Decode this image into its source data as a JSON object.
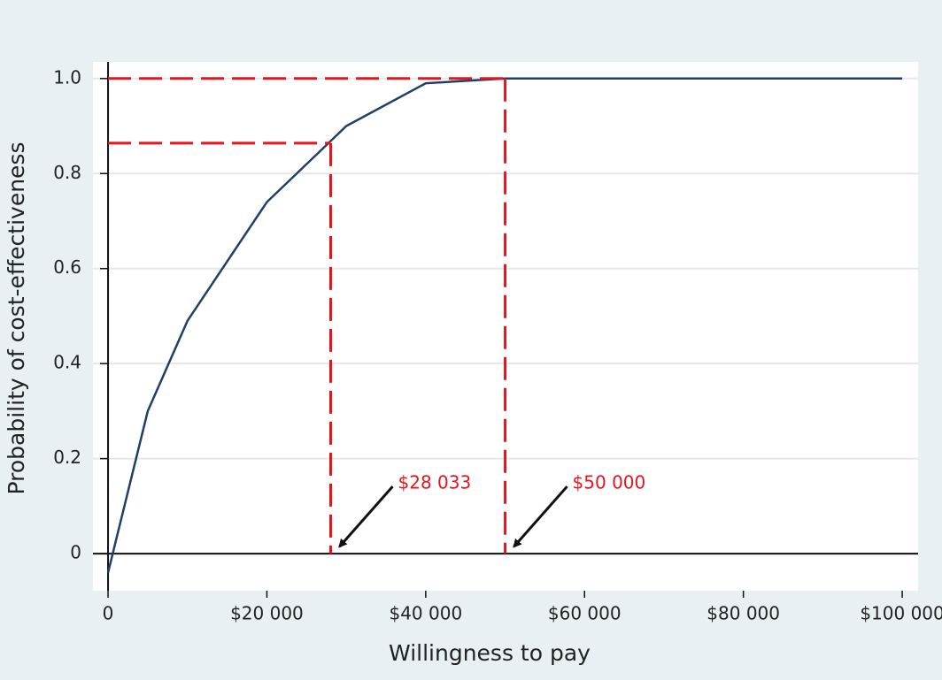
{
  "chart_data": {
    "type": "line",
    "x_label": "Willingness to pay",
    "y_label": "Probability of cost-effectiveness",
    "x": [
      0,
      5000,
      10000,
      20000,
      30000,
      40000,
      50000,
      60000,
      70000,
      80000,
      90000,
      100000
    ],
    "values": [
      -0.04,
      0.3,
      0.49,
      0.74,
      0.9,
      0.99,
      1.0,
      1.0,
      1.0,
      1.0,
      1.0,
      1.0
    ],
    "color": "#1f3f66",
    "xlim": [
      -1900,
      102000
    ],
    "ylim": [
      -0.078,
      1.035
    ],
    "xticks": [
      0,
      {
        "value": 20000,
        "label": "$20 000"
      },
      {
        "value": 40000,
        "label": "$40 000"
      },
      {
        "value": 60000,
        "label": "$60 000"
      },
      {
        "value": 80000,
        "label": "$80 000"
      },
      {
        "value": 100000,
        "label": "$100 000"
      }
    ],
    "yticks": [
      0,
      0.2,
      0.4,
      0.6,
      0.8,
      {
        "value": 1,
        "label": "1.0"
      }
    ],
    "grid": true,
    "reference_lines": [
      {
        "x": 28033,
        "y": 0.864,
        "label": "$28 033",
        "color": "#e8141c"
      },
      {
        "x": 50000,
        "y": 1.0,
        "label": "$50 000",
        "color": "#e8141c"
      }
    ]
  }
}
